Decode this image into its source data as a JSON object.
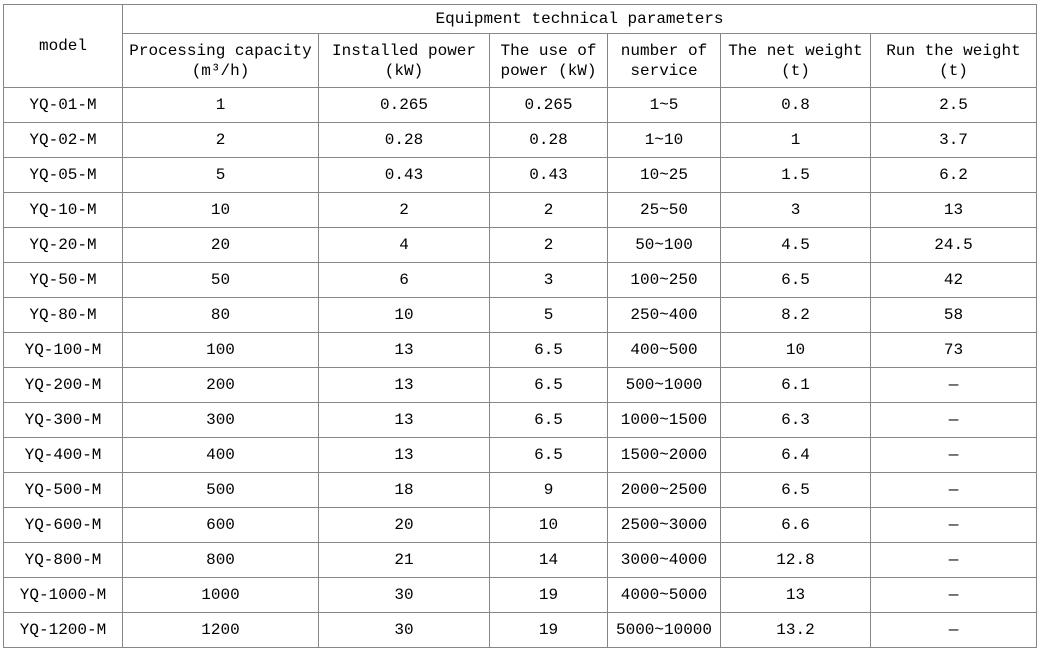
{
  "table": {
    "title": "Equipment technical parameters",
    "model_header": "model",
    "columns": [
      {
        "line1": "Processing capacity",
        "line2": "(m³/h)"
      },
      {
        "line1": "Installed power",
        "line2": "(kW)"
      },
      {
        "line1": "The use of",
        "line2": "power (kW)"
      },
      {
        "line1": "number of",
        "line2": "service"
      },
      {
        "line1": "The net weight",
        "line2": "(t)"
      },
      {
        "line1": "Run the weight",
        "line2": "(t)"
      }
    ],
    "rows": [
      [
        "YQ-01-M",
        "1",
        "0.265",
        "0.265",
        "1~5",
        "0.8",
        "2.5"
      ],
      [
        "YQ-02-M",
        "2",
        "0.28",
        "0.28",
        "1~10",
        "1",
        "3.7"
      ],
      [
        "YQ-05-M",
        "5",
        "0.43",
        "0.43",
        "10~25",
        "1.5",
        "6.2"
      ],
      [
        "YQ-10-M",
        "10",
        "2",
        "2",
        "25~50",
        "3",
        "13"
      ],
      [
        "YQ-20-M",
        "20",
        "4",
        "2",
        "50~100",
        "4.5",
        "24.5"
      ],
      [
        "YQ-50-M",
        "50",
        "6",
        "3",
        "100~250",
        "6.5",
        "42"
      ],
      [
        "YQ-80-M",
        "80",
        "10",
        "5",
        "250~400",
        "8.2",
        "58"
      ],
      [
        "YQ-100-M",
        "100",
        "13",
        "6.5",
        "400~500",
        "10",
        "73"
      ],
      [
        "YQ-200-M",
        "200",
        "13",
        "6.5",
        "500~1000",
        "6.1",
        "—"
      ],
      [
        "YQ-300-M",
        "300",
        "13",
        "6.5",
        "1000~1500",
        "6.3",
        "—"
      ],
      [
        "YQ-400-M",
        "400",
        "13",
        "6.5",
        "1500~2000",
        "6.4",
        "—"
      ],
      [
        "YQ-500-M",
        "500",
        "18",
        "9",
        "2000~2500",
        "6.5",
        "—"
      ],
      [
        "YQ-600-M",
        "600",
        "20",
        "10",
        "2500~3000",
        "6.6",
        "—"
      ],
      [
        "YQ-800-M",
        "800",
        "21",
        "14",
        "3000~4000",
        "12.8",
        "—"
      ],
      [
        "YQ-1000-M",
        "1000",
        "30",
        "19",
        "4000~5000",
        "13",
        "—"
      ],
      [
        "YQ-1200-M",
        "1200",
        "30",
        "19",
        "5000~10000",
        "13.2",
        "—"
      ]
    ]
  },
  "colors": {
    "border": "#868686",
    "text": "#000000",
    "background": "#ffffff"
  }
}
